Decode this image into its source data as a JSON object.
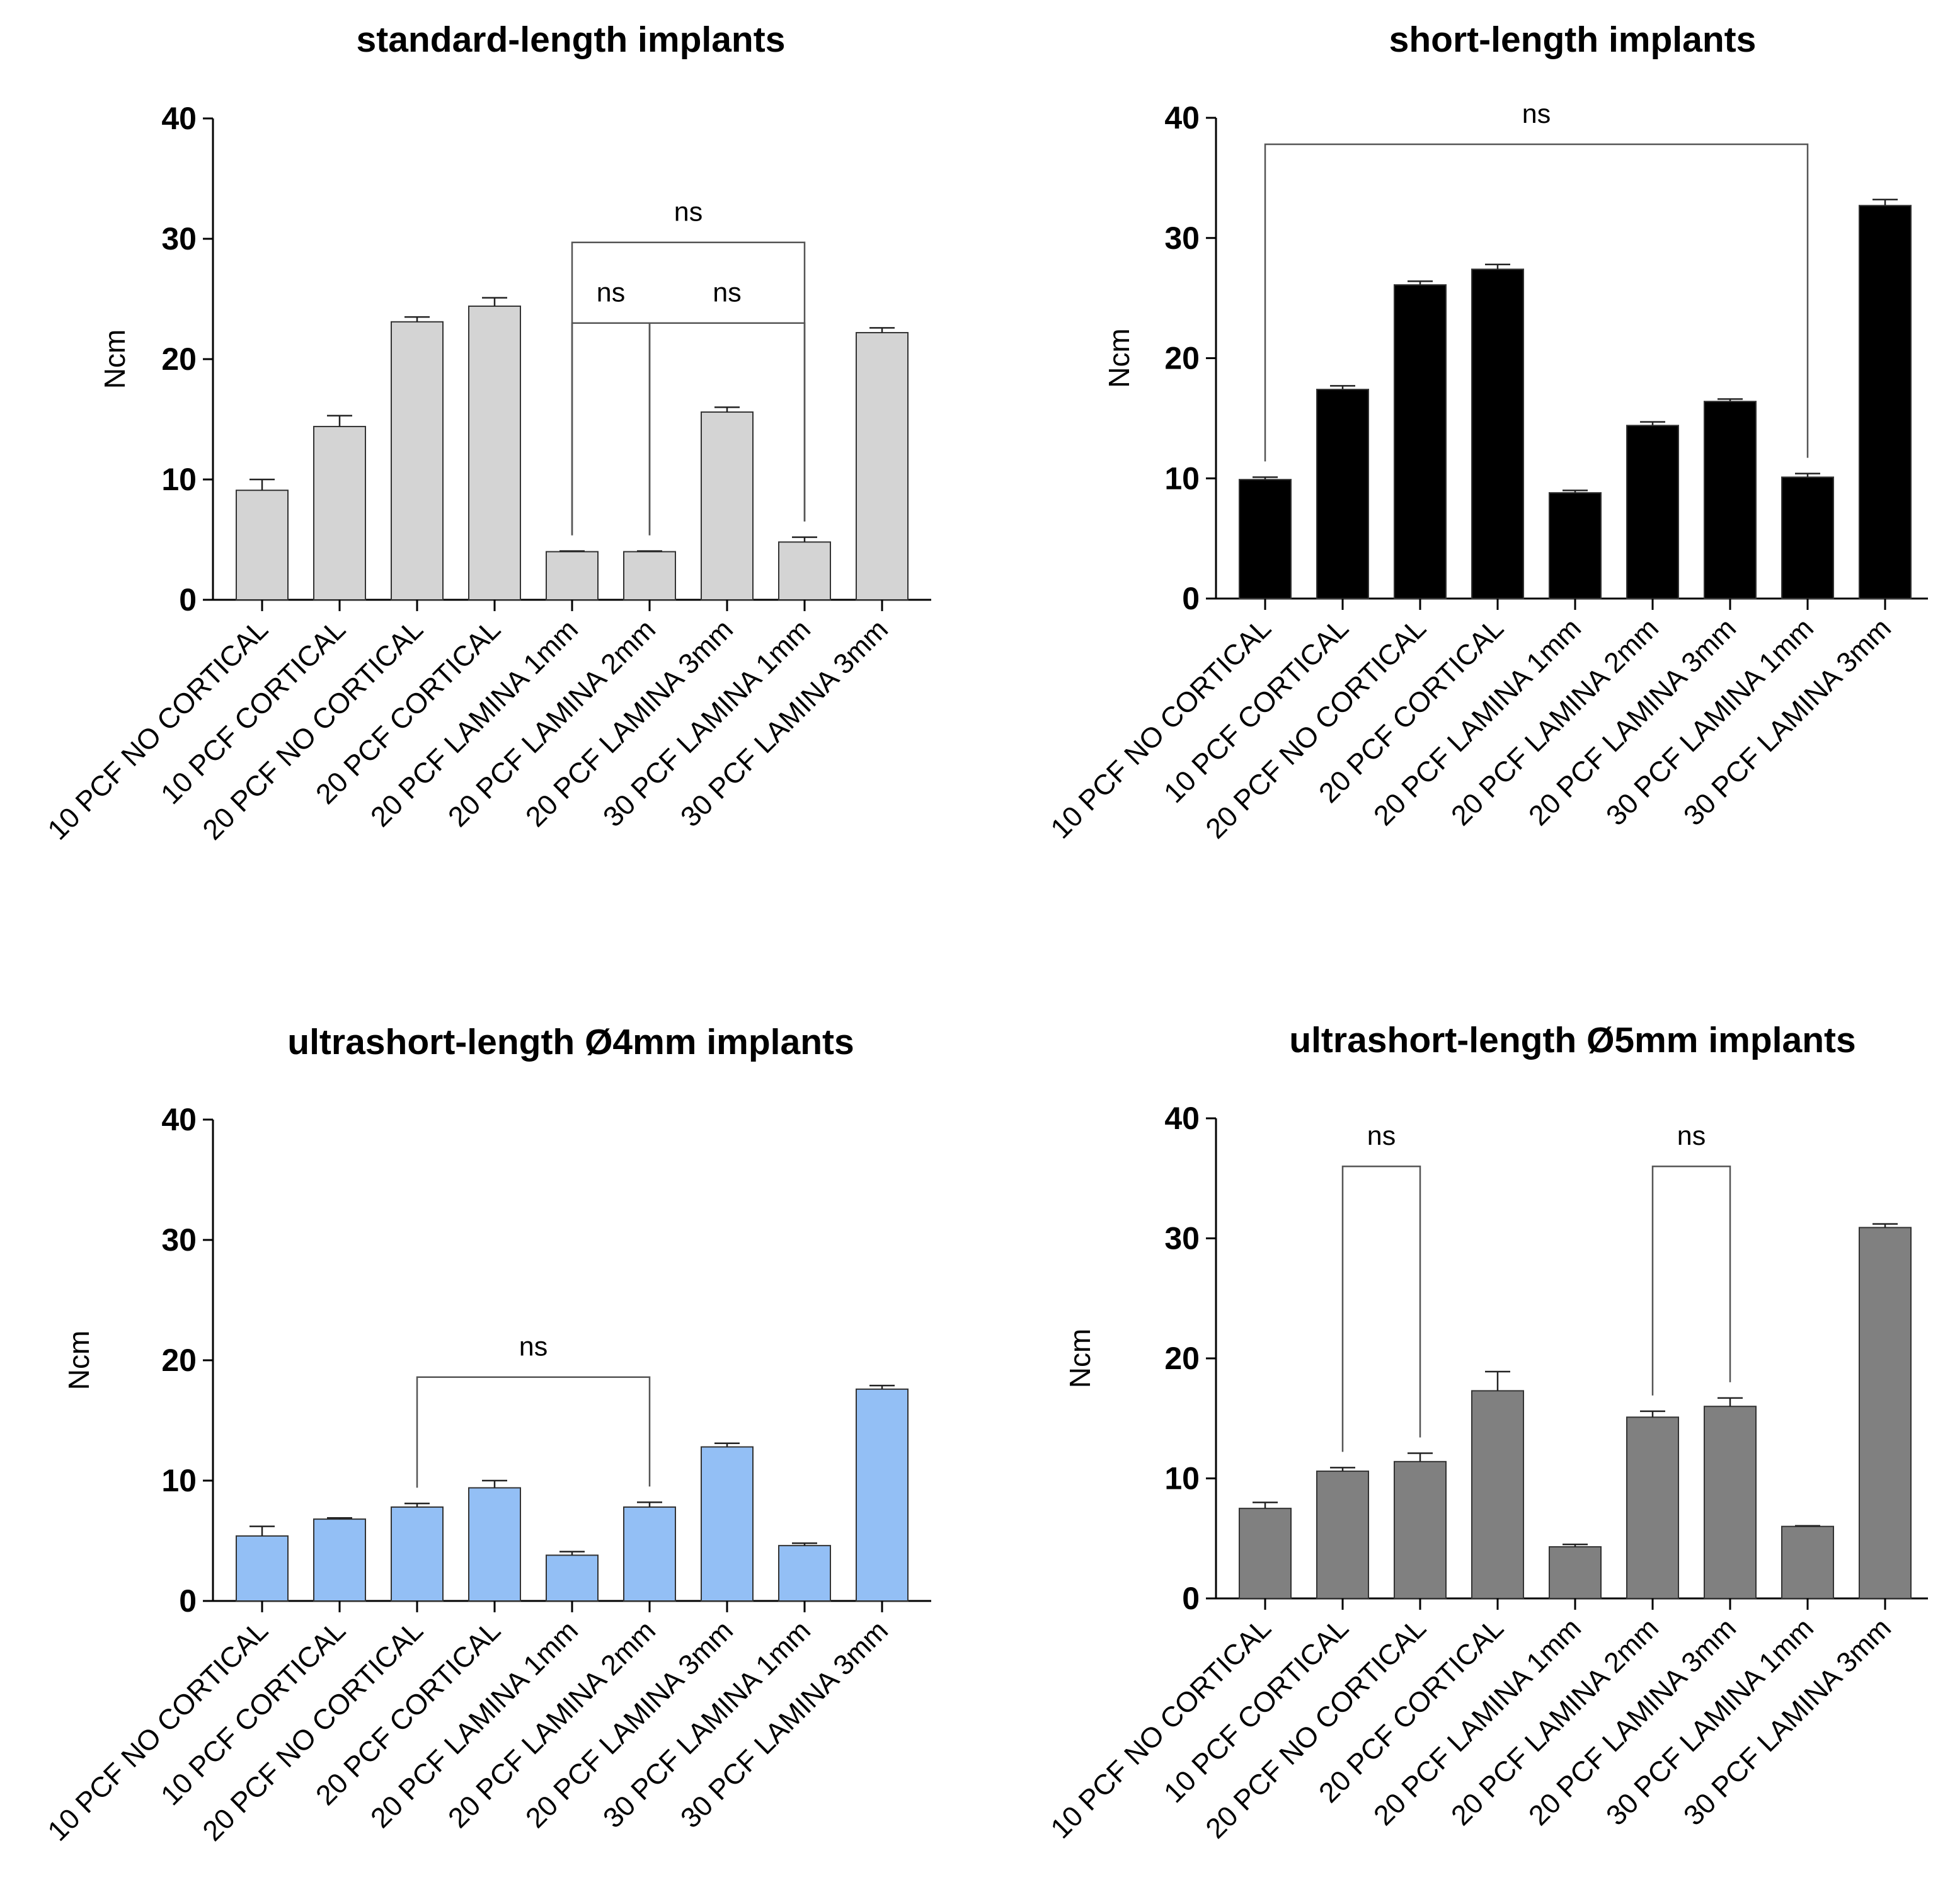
{
  "chart_data": [
    {
      "type": "bar",
      "title": "standard-length implants",
      "ylabel": "Ncm",
      "xlabel": "",
      "ylim": [
        0,
        40
      ],
      "yticks": [
        "0",
        "10",
        "20",
        "30",
        "40"
      ],
      "bar_color": "#d4d4d4",
      "categories": [
        "10 PCF NO CORTICAL",
        "10 PCF CORTICAL",
        "20 PCF NO CORTICAL",
        "20 PCF CORTICAL",
        "20 PCF LAMINA 1mm",
        "20 PCF LAMINA 2mm",
        "20 PCF LAMINA 3mm",
        "30 PCF LAMINA 1mm",
        "30 PCF LAMINA 3mm"
      ],
      "values": [
        9.1,
        14.4,
        23.1,
        24.4,
        4.0,
        4.0,
        15.6,
        4.8,
        22.2
      ],
      "errors": [
        0.9,
        0.9,
        0.4,
        0.7,
        0.05,
        0.05,
        0.4,
        0.4,
        0.4
      ],
      "significance": [
        {
          "from": 4,
          "to": 5,
          "label": "ns",
          "height": 23.0
        },
        {
          "from": 5,
          "to": 7,
          "label": "ns",
          "height": 23.0
        },
        {
          "from": 4,
          "to": 7,
          "label": "ns",
          "height": 29.7
        }
      ]
    },
    {
      "type": "bar",
      "title": "short-length implants",
      "ylabel": "Ncm",
      "xlabel": "",
      "ylim": [
        0,
        40
      ],
      "yticks": [
        "0",
        "10",
        "20",
        "30",
        "40"
      ],
      "bar_color": "#000000",
      "categories": [
        "10 PCF NO CORTICAL",
        "10 PCF CORTICAL",
        "20 PCF NO CORTICAL",
        "20 PCF CORTICAL",
        "20 PCF LAMINA 1mm",
        "20 PCF LAMINA 2mm",
        "20 PCF LAMINA 3mm",
        "30 PCF LAMINA 1mm",
        "30 PCF LAMINA 3mm"
      ],
      "values": [
        9.9,
        17.4,
        26.1,
        27.4,
        8.8,
        14.4,
        16.4,
        10.1,
        32.7
      ],
      "errors": [
        0.2,
        0.3,
        0.3,
        0.4,
        0.2,
        0.3,
        0.2,
        0.3,
        0.5
      ],
      "significance": [
        {
          "from": 0,
          "to": 7,
          "label": "ns",
          "height": 37.8
        }
      ]
    },
    {
      "type": "bar",
      "title": "ultrashort-length Ø4mm implants",
      "ylabel": "Ncm",
      "xlabel": "",
      "ylim": [
        0,
        40
      ],
      "yticks": [
        "0",
        "10",
        "20",
        "30",
        "40"
      ],
      "bar_color": "#93bff5",
      "categories": [
        "10 PCF NO CORTICAL",
        "10 PCF CORTICAL",
        "20 PCF NO CORTICAL",
        "20 PCF CORTICAL",
        "20 PCF LAMINA 1mm",
        "20 PCF LAMINA 2mm",
        "20 PCF LAMINA 3mm",
        "30 PCF LAMINA 1mm",
        "30 PCF LAMINA 3mm"
      ],
      "values": [
        5.4,
        6.8,
        7.8,
        9.4,
        3.8,
        7.8,
        12.8,
        4.6,
        17.6
      ],
      "errors": [
        0.8,
        0.1,
        0.3,
        0.6,
        0.3,
        0.4,
        0.3,
        0.2,
        0.3
      ],
      "significance": [
        {
          "from": 2,
          "to": 5,
          "label": "ns",
          "height": 18.6
        }
      ]
    },
    {
      "type": "bar",
      "title": "ultrashort-length Ø5mm implants",
      "ylabel": "Ncm",
      "xlabel": "",
      "ylim": [
        0,
        40
      ],
      "yticks": [
        "0",
        "10",
        "20",
        "30",
        "40"
      ],
      "bar_color": "#808080",
      "categories": [
        "10 PCF NO CORTICAL",
        "10 PCF CORTICAL",
        "20 PCF NO CORTICAL",
        "20 PCF CORTICAL",
        "20 PCF LAMINA 1mm",
        "20 PCF LAMINA 2mm",
        "20 PCF LAMINA 3mm",
        "30 PCF LAMINA 1mm",
        "30 PCF LAMINA 3mm"
      ],
      "values": [
        7.5,
        10.6,
        11.4,
        17.3,
        4.3,
        15.1,
        16.0,
        6.0,
        30.9
      ],
      "errors": [
        0.5,
        0.3,
        0.7,
        1.6,
        0.2,
        0.5,
        0.7,
        0.05,
        0.3
      ],
      "significance": [
        {
          "from": 1,
          "to": 2,
          "label": "ns",
          "height": 36.0
        },
        {
          "from": 5,
          "to": 6,
          "label": "ns",
          "height": 36.0
        }
      ]
    }
  ]
}
